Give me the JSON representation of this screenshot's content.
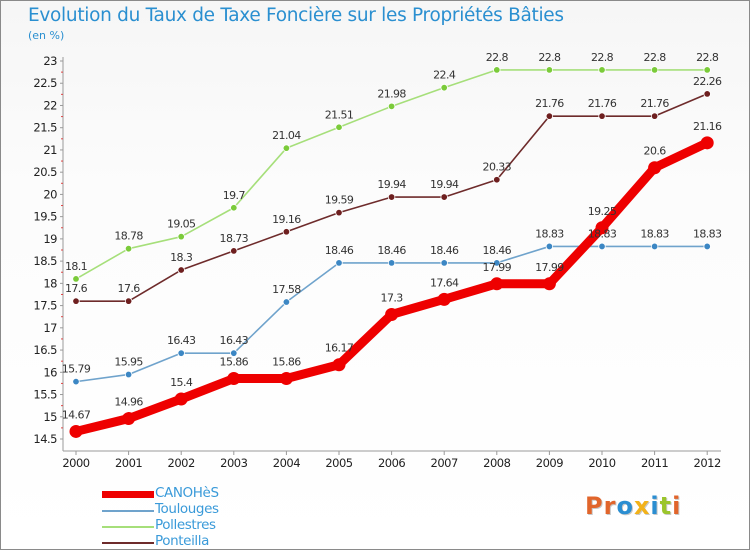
{
  "title": "Evolution du Taux de Taxe Foncière sur les Propriétés Bâties",
  "subtitle": "(en %)",
  "logo": {
    "text": "Proxiti",
    "colors": [
      "#e1652b",
      "#e1652b",
      "#2b8ed1",
      "#f2b21a",
      "#2b8ed1",
      "#9bc52c",
      "#e1652b"
    ]
  },
  "chart_data": {
    "type": "line",
    "title": "Evolution du Taux de Taxe Foncière sur les Propriétés Bâties",
    "ylabel": "(en %)",
    "xlabel": "",
    "x": [
      "2000",
      "2001",
      "2002",
      "2003",
      "2004",
      "2005",
      "2006",
      "2007",
      "2008",
      "2009",
      "2010",
      "2011",
      "2012"
    ],
    "ylim": [
      14.5,
      23
    ],
    "yticks": [
      "14.5",
      "15",
      "15.5",
      "16",
      "16.5",
      "17",
      "17.5",
      "18",
      "18.5",
      "19",
      "19.5",
      "20",
      "20.5",
      "21",
      "21.5",
      "22",
      "22.5",
      "23"
    ],
    "grid": false,
    "legend_position": "bottom-left",
    "series": [
      {
        "name": "CANOHèS",
        "color": "#ee0000",
        "values": [
          14.67,
          14.96,
          15.4,
          15.86,
          15.86,
          16.17,
          17.3,
          17.64,
          17.99,
          17.99,
          19.25,
          20.6,
          21.16
        ],
        "labels": [
          "14.67",
          "14.96",
          "15.4",
          "15.86",
          "15.86",
          "16.17",
          "17.3",
          "17.64",
          "17.99",
          "17.99",
          "19.25",
          "20.6",
          "21.16"
        ]
      },
      {
        "name": "Toulouges",
        "color": "#6fa3cc",
        "marker": "#3c87c4",
        "values": [
          15.79,
          15.95,
          16.43,
          16.43,
          17.58,
          18.46,
          18.46,
          18.46,
          18.46,
          18.83,
          18.83,
          18.83,
          18.83
        ],
        "labels": [
          "15.79",
          "15.95",
          "16.43",
          "16.43",
          "17.58",
          "18.46",
          "18.46",
          "18.46",
          "18.46",
          "18.83",
          "18.83",
          "18.83",
          "18.83"
        ]
      },
      {
        "name": "Pollestres",
        "color": "#a6df7a",
        "marker": "#7bcb3a",
        "values": [
          18.1,
          18.78,
          19.05,
          19.7,
          21.04,
          21.51,
          21.98,
          22.4,
          22.8,
          22.8,
          22.8,
          22.8,
          22.8
        ],
        "labels": [
          "18.1",
          "18.78",
          "19.05",
          "19.7",
          "21.04",
          "21.51",
          "21.98",
          "22.4",
          "22.8",
          "22.8",
          "22.8",
          "22.8",
          "22.8"
        ]
      },
      {
        "name": "Ponteilla",
        "color": "#6e2b2b",
        "marker": "#6e1f1f",
        "values": [
          17.6,
          17.6,
          18.3,
          18.73,
          19.16,
          19.59,
          19.94,
          19.94,
          20.33,
          21.76,
          21.76,
          21.76,
          22.26
        ],
        "labels": [
          "17.6",
          "17.6",
          "18.3",
          "18.73",
          "19.16",
          "19.59",
          "19.94",
          "19.94",
          "20.33",
          "21.76",
          "21.76",
          "21.76",
          "22.26"
        ]
      }
    ]
  }
}
